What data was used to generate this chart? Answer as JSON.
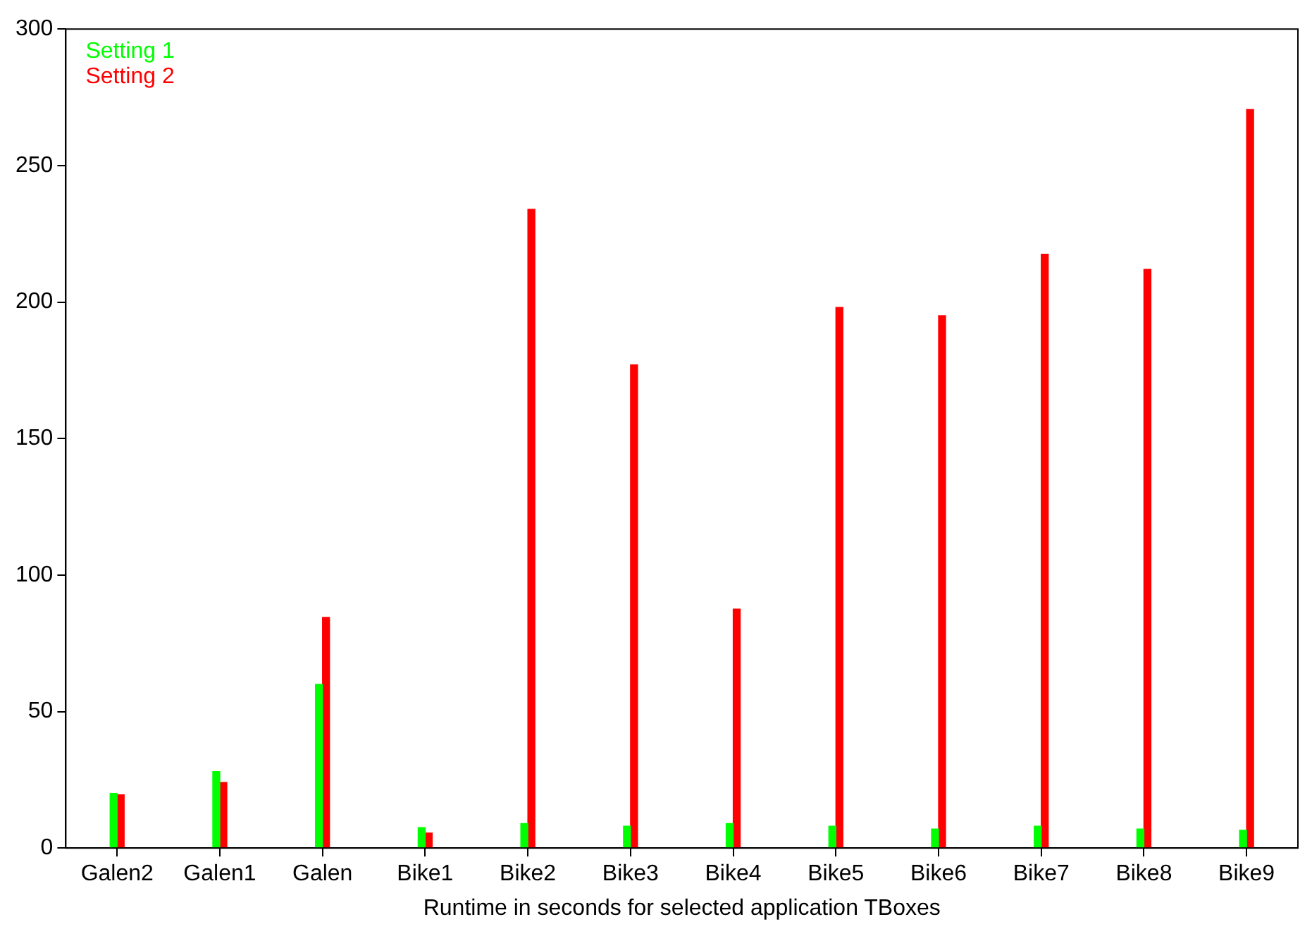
{
  "chart_data": {
    "type": "bar",
    "xlabel": "Runtime in seconds for selected application TBoxes",
    "categories": [
      "Galen2",
      "Galen1",
      "Galen",
      "Bike1",
      "Bike2",
      "Bike3",
      "Bike4",
      "Bike5",
      "Bike6",
      "Bike7",
      "Bike8",
      "Bike9"
    ],
    "series": [
      {
        "name": "Setting 1",
        "color": "#00ff00",
        "values": [
          20,
          28,
          60,
          7.5,
          9,
          8,
          9,
          8,
          7,
          8,
          7,
          6.5
        ]
      },
      {
        "name": "Setting 2",
        "color": "#ff0000",
        "values": [
          19.5,
          24,
          84.5,
          5.5,
          234,
          177,
          87.5,
          198,
          195,
          217.5,
          212,
          270.5
        ]
      }
    ],
    "ylim": [
      0,
      300
    ],
    "yticks": [
      0,
      50,
      100,
      150,
      200,
      250,
      300
    ],
    "grid": false,
    "legend": "top left"
  }
}
